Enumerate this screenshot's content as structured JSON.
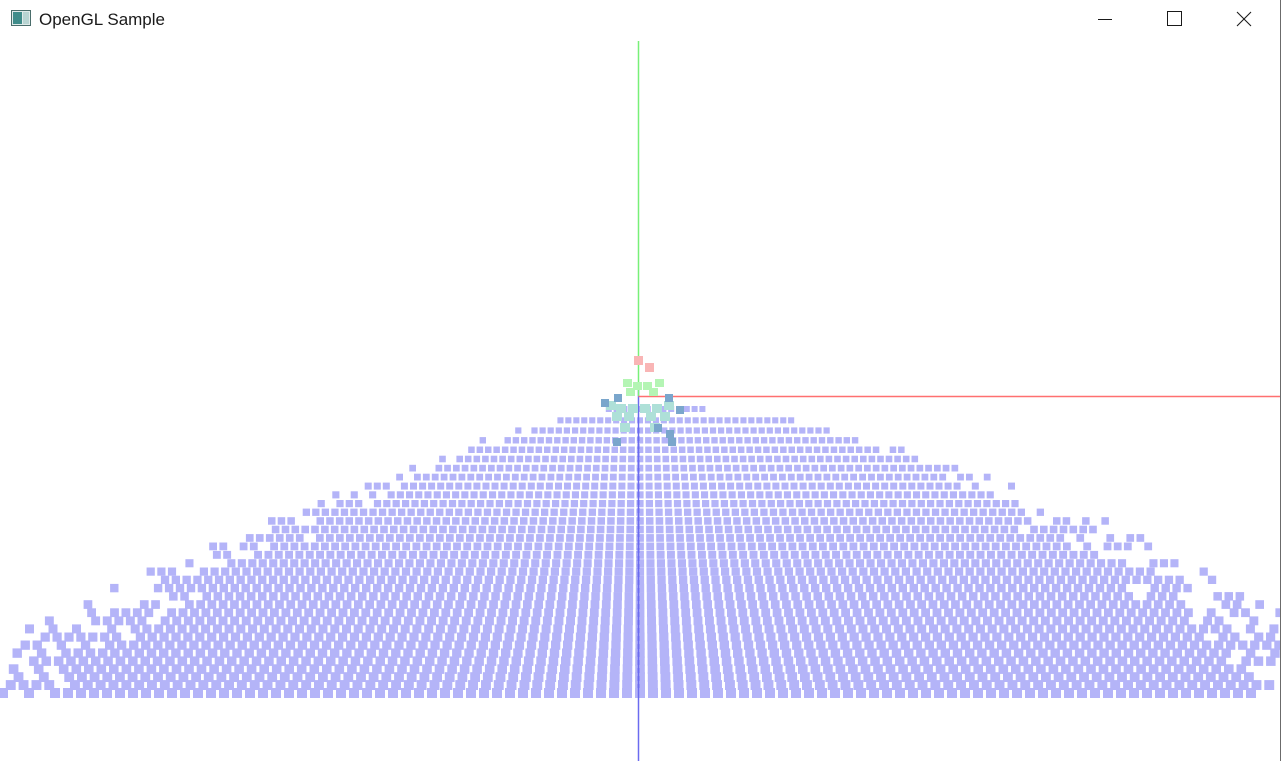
{
  "window": {
    "title": "OpenGL Sample",
    "app_icon": "opengl-app-icon",
    "controls": {
      "minimize_icon": "minimize-icon",
      "maximize_icon": "maximize-icon",
      "close_icon": "close-icon"
    }
  },
  "scene": {
    "background_color": "#ffffff",
    "axes": {
      "x_axis_color": "#ff7070",
      "y_axis_color": "#78f078",
      "z_axis_color": "#6b6bf0"
    },
    "point_cloud_color": "#b4b4f8",
    "marker_colors": {
      "red_markers": "#f9b5b5",
      "green_markers": "#b4f5b4",
      "teal_markers": "#aee0d8",
      "steel_blue_markers": "#7aa6cc"
    }
  }
}
